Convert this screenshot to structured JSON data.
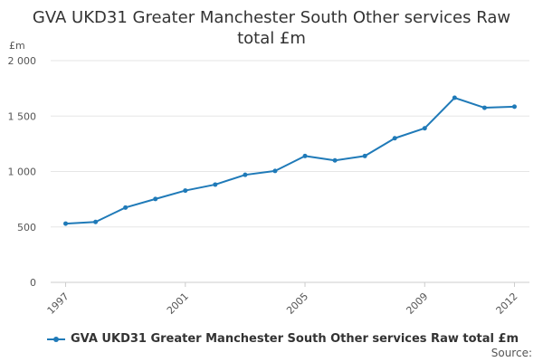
{
  "chart_data": {
    "type": "line",
    "title_line1": "GVA UKD31 Greater Manchester South Other services Raw",
    "title_line2": "total £m",
    "ylabel": "£m",
    "xlabel": "",
    "ylim": [
      0,
      2000
    ],
    "y_ticks": [
      0,
      500,
      1000,
      1500,
      2000
    ],
    "y_tick_labels": [
      "0",
      "500",
      "1 000",
      "1 500",
      "2 000"
    ],
    "x_ticks": [
      1997,
      2001,
      2005,
      2009,
      2012
    ],
    "x_tick_labels": [
      "1997",
      "2001",
      "2005",
      "2009",
      "2012"
    ],
    "grid": true,
    "legend_position": "bottom-left",
    "series": [
      {
        "name": "GVA UKD31 Greater Manchester South Other services Raw total £m",
        "color": "#1f7ab8",
        "x": [
          1997,
          1998,
          1999,
          2000,
          2001,
          2002,
          2003,
          2004,
          2005,
          2006,
          2007,
          2008,
          2009,
          2010,
          2011,
          2012
        ],
        "values": [
          530,
          545,
          675,
          752,
          828,
          882,
          970,
          1005,
          1140,
          1100,
          1140,
          1300,
          1390,
          1665,
          1575,
          1585
        ]
      }
    ]
  },
  "legend": {
    "label": "GVA UKD31 Greater Manchester South Other services Raw total £m"
  },
  "footer": {
    "source_label": "Source:"
  }
}
